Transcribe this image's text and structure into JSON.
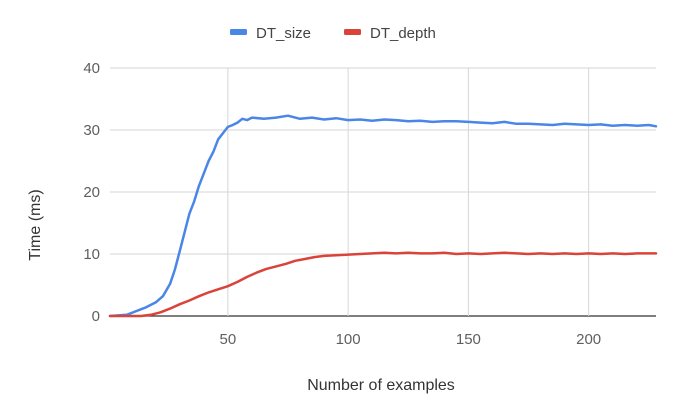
{
  "chart_data": {
    "type": "line",
    "title": "",
    "xlabel": "Number of examples",
    "ylabel": "Time (ms)",
    "xlim": [
      1,
      228
    ],
    "ylim": [
      0,
      40
    ],
    "x_ticks": [
      50,
      100,
      150,
      200
    ],
    "y_ticks": [
      0,
      10,
      20,
      30,
      40
    ],
    "grid": true,
    "legend_position": "top",
    "series": [
      {
        "name": "DT_size",
        "color": "#4a86e8",
        "points": [
          [
            1,
            0
          ],
          [
            8,
            0.2
          ],
          [
            12,
            0.8
          ],
          [
            16,
            1.4
          ],
          [
            20,
            2.2
          ],
          [
            23,
            3.2
          ],
          [
            26,
            5.2
          ],
          [
            28,
            7.5
          ],
          [
            30,
            10.5
          ],
          [
            32,
            13.5
          ],
          [
            34,
            16.5
          ],
          [
            36,
            18.5
          ],
          [
            38,
            21
          ],
          [
            40,
            23
          ],
          [
            42,
            25
          ],
          [
            44,
            26.5
          ],
          [
            46,
            28.5
          ],
          [
            48,
            29.5
          ],
          [
            50,
            30.5
          ],
          [
            52,
            30.8
          ],
          [
            54,
            31.2
          ],
          [
            56,
            31.8
          ],
          [
            58,
            31.6
          ],
          [
            60,
            32.0
          ],
          [
            65,
            31.8
          ],
          [
            70,
            32.0
          ],
          [
            75,
            32.3
          ],
          [
            80,
            31.8
          ],
          [
            85,
            32.0
          ],
          [
            90,
            31.7
          ],
          [
            95,
            31.9
          ],
          [
            100,
            31.6
          ],
          [
            105,
            31.7
          ],
          [
            110,
            31.5
          ],
          [
            115,
            31.7
          ],
          [
            120,
            31.6
          ],
          [
            125,
            31.4
          ],
          [
            130,
            31.5
          ],
          [
            135,
            31.3
          ],
          [
            140,
            31.4
          ],
          [
            145,
            31.4
          ],
          [
            150,
            31.3
          ],
          [
            155,
            31.2
          ],
          [
            160,
            31.1
          ],
          [
            165,
            31.3
          ],
          [
            170,
            31.0
          ],
          [
            175,
            31.0
          ],
          [
            180,
            30.9
          ],
          [
            185,
            30.8
          ],
          [
            190,
            31.0
          ],
          [
            195,
            30.9
          ],
          [
            200,
            30.8
          ],
          [
            205,
            30.9
          ],
          [
            210,
            30.7
          ],
          [
            215,
            30.8
          ],
          [
            220,
            30.7
          ],
          [
            225,
            30.8
          ],
          [
            228,
            30.6
          ]
        ]
      },
      {
        "name": "DT_depth",
        "color": "#d9433a",
        "points": [
          [
            1,
            0
          ],
          [
            14,
            0
          ],
          [
            18,
            0.2
          ],
          [
            22,
            0.6
          ],
          [
            26,
            1.2
          ],
          [
            30,
            1.9
          ],
          [
            34,
            2.5
          ],
          [
            38,
            3.2
          ],
          [
            42,
            3.8
          ],
          [
            46,
            4.3
          ],
          [
            50,
            4.8
          ],
          [
            54,
            5.5
          ],
          [
            58,
            6.3
          ],
          [
            62,
            7.0
          ],
          [
            66,
            7.6
          ],
          [
            70,
            8.0
          ],
          [
            74,
            8.4
          ],
          [
            78,
            8.9
          ],
          [
            82,
            9.2
          ],
          [
            86,
            9.5
          ],
          [
            90,
            9.7
          ],
          [
            95,
            9.8
          ],
          [
            100,
            9.9
          ],
          [
            105,
            10.0
          ],
          [
            110,
            10.1
          ],
          [
            115,
            10.2
          ],
          [
            120,
            10.1
          ],
          [
            125,
            10.2
          ],
          [
            130,
            10.1
          ],
          [
            135,
            10.1
          ],
          [
            140,
            10.2
          ],
          [
            145,
            10.0
          ],
          [
            150,
            10.1
          ],
          [
            155,
            10.0
          ],
          [
            160,
            10.1
          ],
          [
            165,
            10.2
          ],
          [
            170,
            10.1
          ],
          [
            175,
            10.0
          ],
          [
            180,
            10.1
          ],
          [
            185,
            10.0
          ],
          [
            190,
            10.1
          ],
          [
            195,
            10.0
          ],
          [
            200,
            10.1
          ],
          [
            205,
            10.0
          ],
          [
            210,
            10.1
          ],
          [
            215,
            10.0
          ],
          [
            220,
            10.1
          ],
          [
            228,
            10.1
          ]
        ]
      }
    ]
  }
}
